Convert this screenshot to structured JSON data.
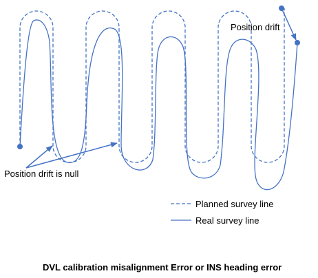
{
  "colors": {
    "line": "#4472C4",
    "text": "#000000",
    "background": "#ffffff"
  },
  "annotations": {
    "position_drift": "Position drift",
    "position_drift_null": "Position drift  is null"
  },
  "legend": {
    "planned": "Planned survey line",
    "real": "Real survey line"
  },
  "caption": "DVL calibration misalignment Error or INS heading error"
}
